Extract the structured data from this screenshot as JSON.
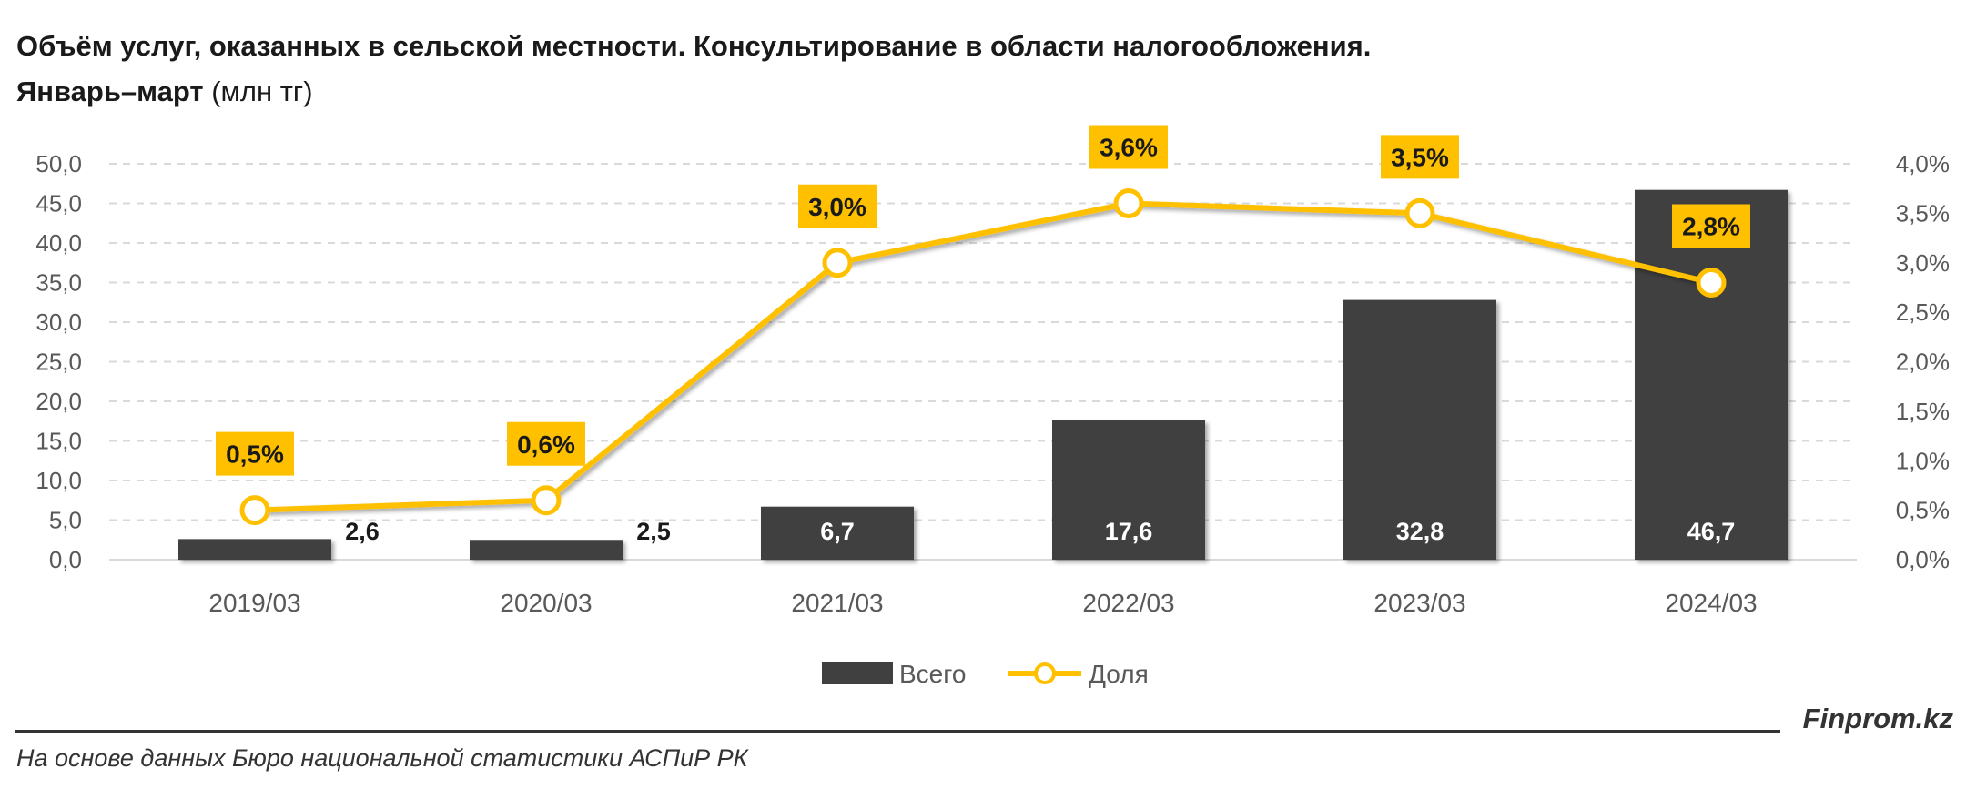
{
  "header": {
    "title": "Объём услуг, оказанных в сельской местности. Консультирование в области налогообложения.",
    "subtitle_bold": "Январь–март",
    "subtitle_unit": "(млн тг)"
  },
  "chart_data": {
    "type": "bar",
    "categories": [
      "2019/03",
      "2020/03",
      "2021/03",
      "2022/03",
      "2023/03",
      "2024/03"
    ],
    "series": [
      {
        "name": "Всего",
        "type": "bar",
        "axis": "left",
        "values": [
          2.6,
          2.5,
          6.7,
          17.6,
          32.8,
          46.7
        ],
        "labels": [
          "2,6",
          "2,5",
          "6,7",
          "17,6",
          "32,8",
          "46,7"
        ],
        "color": "#404040"
      },
      {
        "name": "Доля",
        "type": "line",
        "axis": "right",
        "values": [
          0.5,
          0.6,
          3.0,
          3.6,
          3.5,
          2.8
        ],
        "labels": [
          "0,5%",
          "0,6%",
          "3,0%",
          "3,6%",
          "3,5%",
          "2,8%"
        ],
        "color": "#FFC000"
      }
    ],
    "y_left": {
      "range": [
        0,
        50
      ],
      "ticks": [
        "0,0",
        "5,0",
        "10,0",
        "15,0",
        "20,0",
        "25,0",
        "30,0",
        "35,0",
        "40,0",
        "45,0",
        "50,0"
      ]
    },
    "y_right": {
      "range": [
        0,
        4
      ],
      "ticks": [
        "0,0%",
        "0,5%",
        "1,0%",
        "1,5%",
        "2,0%",
        "2,5%",
        "3,0%",
        "3,5%",
        "4,0%"
      ]
    },
    "grid": true,
    "legend": "bottom-center"
  },
  "footer": {
    "brand": "Finprom.kz",
    "source": "На основе данных Бюро национальной статистики АСПиР РК"
  }
}
